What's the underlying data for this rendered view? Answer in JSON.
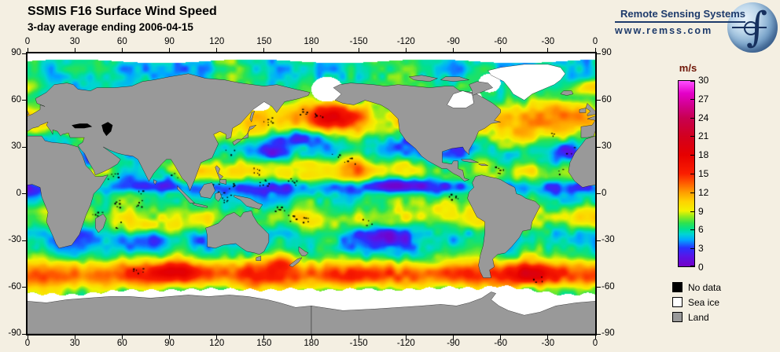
{
  "header": {
    "title": "SSMIS F16 Surface Wind Speed",
    "subtitle": "3-day average ending 2006-04-15"
  },
  "branding": {
    "name": "Remote Sensing Systems",
    "url": "www.remss.com",
    "color": "#1d3a6b"
  },
  "map": {
    "lon_tick_labels": [
      "0",
      "30",
      "60",
      "90",
      "120",
      "150",
      "180",
      "-150",
      "-120",
      "-90",
      "-60",
      "-30",
      "0"
    ],
    "lat_tick_labels": [
      "90",
      "60",
      "30",
      "0",
      "-30",
      "-60",
      "-90"
    ]
  },
  "colorbar": {
    "units": "m/s",
    "min": 0,
    "max": 30,
    "tick_values": [
      0,
      3,
      6,
      9,
      12,
      15,
      18,
      21,
      24,
      27,
      30
    ],
    "stops": [
      {
        "v": 0,
        "color": "#7400c8"
      },
      {
        "v": 1.6,
        "color": "#5a14e6"
      },
      {
        "v": 3,
        "color": "#2832ff"
      },
      {
        "v": 4.3,
        "color": "#00a8ff"
      },
      {
        "v": 5.2,
        "color": "#00d4d4"
      },
      {
        "v": 6,
        "color": "#00e091"
      },
      {
        "v": 7,
        "color": "#2ee24e"
      },
      {
        "v": 8,
        "color": "#8ceb1e"
      },
      {
        "v": 9,
        "color": "#f2f200"
      },
      {
        "v": 10.5,
        "color": "#ffd200"
      },
      {
        "v": 12,
        "color": "#ff9c00"
      },
      {
        "v": 13.5,
        "color": "#ff5a00"
      },
      {
        "v": 15,
        "color": "#fa1e00"
      },
      {
        "v": 18,
        "color": "#e60000"
      },
      {
        "v": 21,
        "color": "#d2001e"
      },
      {
        "v": 24,
        "color": "#c80050"
      },
      {
        "v": 26,
        "color": "#d2008c"
      },
      {
        "v": 28,
        "color": "#e400c8"
      },
      {
        "v": 30,
        "color": "#ff50ff"
      }
    ]
  },
  "legend": {
    "items": [
      {
        "label": "No data",
        "color": "#000000"
      },
      {
        "label": "Sea ice",
        "color": "#ffffff"
      },
      {
        "label": "Land",
        "color": "#999999"
      }
    ]
  },
  "colors": {
    "background": "#f4efe2",
    "land": "#999999",
    "sea_ice": "#ffffff",
    "no_data": "#000000",
    "frame": "#000000",
    "units_label": "#6e1505"
  },
  "chart_data": {
    "type": "heatmap",
    "title": "SSMIS F16 Surface Wind Speed",
    "subtitle": "3-day average ending 2006-04-15",
    "units": "m/s",
    "projection": "equirectangular",
    "lon_ticks_deg": [
      0,
      30,
      60,
      90,
      120,
      150,
      180,
      -150,
      -120,
      -90,
      -60,
      -30,
      0
    ],
    "lat_ticks_deg": [
      90,
      60,
      30,
      0,
      -30,
      -60,
      -90
    ],
    "scale_min": 0,
    "scale_max": 30,
    "scale_tick_step": 3,
    "legend_categories": [
      "No data",
      "Sea ice",
      "Land"
    ]
  }
}
